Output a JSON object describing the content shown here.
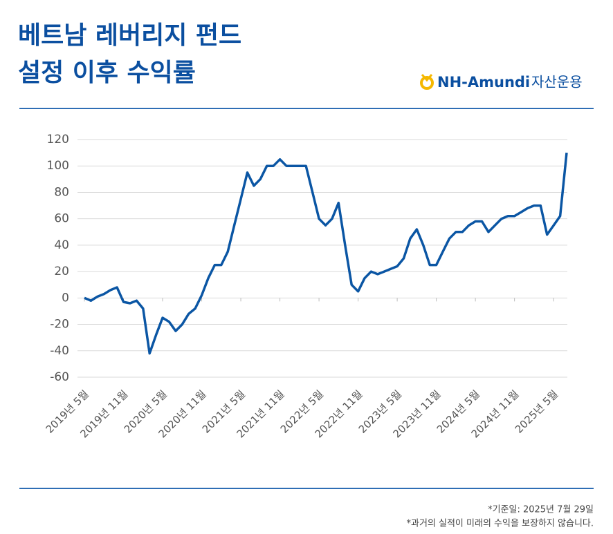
{
  "header": {
    "title_lines": [
      "베트남 레버리지 펀드",
      "설정 이후 수익률"
    ],
    "logo_brand": "NH-Amundi",
    "logo_suffix": "자산운용"
  },
  "chart_data": {
    "type": "line",
    "categories": [
      "2019년 5월",
      null,
      null,
      null,
      null,
      null,
      "2019년 11월",
      null,
      null,
      null,
      null,
      null,
      "2020년 5월",
      null,
      null,
      null,
      null,
      null,
      "2020년 11월",
      null,
      null,
      null,
      null,
      null,
      "2021년 5월",
      null,
      null,
      null,
      null,
      null,
      "2021년 11월",
      null,
      null,
      null,
      null,
      null,
      "2022년 5월",
      null,
      null,
      null,
      null,
      null,
      "2022년 11월",
      null,
      null,
      null,
      null,
      null,
      "2023년 5월",
      null,
      null,
      null,
      null,
      null,
      "2023년 11월",
      null,
      null,
      null,
      null,
      null,
      "2024년 5월",
      null,
      null,
      null,
      null,
      null,
      "2024년 11월",
      null,
      null,
      null,
      null,
      null,
      "2025년 5월",
      null,
      null
    ],
    "values": [
      0,
      -2,
      1,
      3,
      6,
      8,
      -3,
      -4,
      -2,
      -8,
      -42,
      -28,
      -15,
      -18,
      -25,
      -20,
      -12,
      -8,
      2,
      15,
      25,
      25,
      35,
      55,
      75,
      95,
      85,
      90,
      100,
      100,
      105,
      100,
      100,
      100,
      100,
      80,
      60,
      55,
      60,
      72,
      40,
      10,
      5,
      15,
      20,
      18,
      20,
      22,
      24,
      30,
      45,
      52,
      40,
      25,
      25,
      35,
      45,
      50,
      50,
      55,
      58,
      58,
      50,
      55,
      60,
      62,
      62,
      65,
      68,
      70,
      70,
      48,
      55,
      62,
      110
    ],
    "color": "#0b56a4",
    "ylim": [
      -60,
      120
    ],
    "yticks": [
      -60,
      -40,
      -20,
      0,
      20,
      40,
      60,
      80,
      100,
      120
    ],
    "grid": true
  },
  "footer": {
    "notes": [
      "*기준일: 2025년 7월 29일",
      "*과거의 실적이 미래의 수익을 보장하지 않습니다."
    ]
  }
}
